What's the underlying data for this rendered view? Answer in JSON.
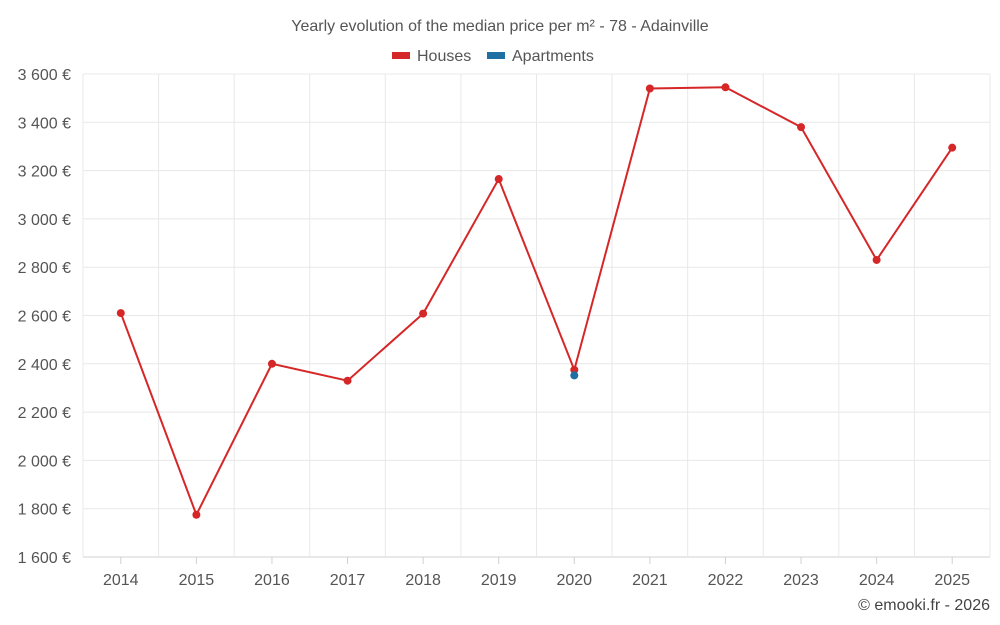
{
  "chart_data": {
    "type": "line",
    "title": "Yearly evolution of the median price per m² - 78 - Adainville",
    "xlabel": "",
    "ylabel": "",
    "categories": [
      "2014",
      "2015",
      "2016",
      "2017",
      "2018",
      "2019",
      "2020",
      "2021",
      "2022",
      "2023",
      "2024",
      "2025"
    ],
    "ylim": [
      1600,
      3600
    ],
    "y_ticks": [
      1600,
      1800,
      2000,
      2200,
      2400,
      2600,
      2800,
      3000,
      3200,
      3400,
      3600
    ],
    "y_tick_labels": [
      "1 600 €",
      "1 800 €",
      "2 000 €",
      "2 200 €",
      "2 400 €",
      "2 600 €",
      "2 800 €",
      "3 000 €",
      "3 200 €",
      "3 400 €",
      "3 600 €"
    ],
    "grid": true,
    "legend_position": "top-center",
    "series": [
      {
        "name": "Houses",
        "color": "#d62728",
        "values": [
          2610,
          1775,
          2400,
          2330,
          2608,
          3165,
          2375,
          3540,
          3545,
          3380,
          2830,
          3295
        ]
      },
      {
        "name": "Apartments",
        "color": "#1f6fa3",
        "values": [
          null,
          null,
          null,
          null,
          null,
          null,
          2352,
          null,
          null,
          null,
          null,
          null
        ]
      }
    ]
  },
  "credit": "© emooki.fr - 2026"
}
